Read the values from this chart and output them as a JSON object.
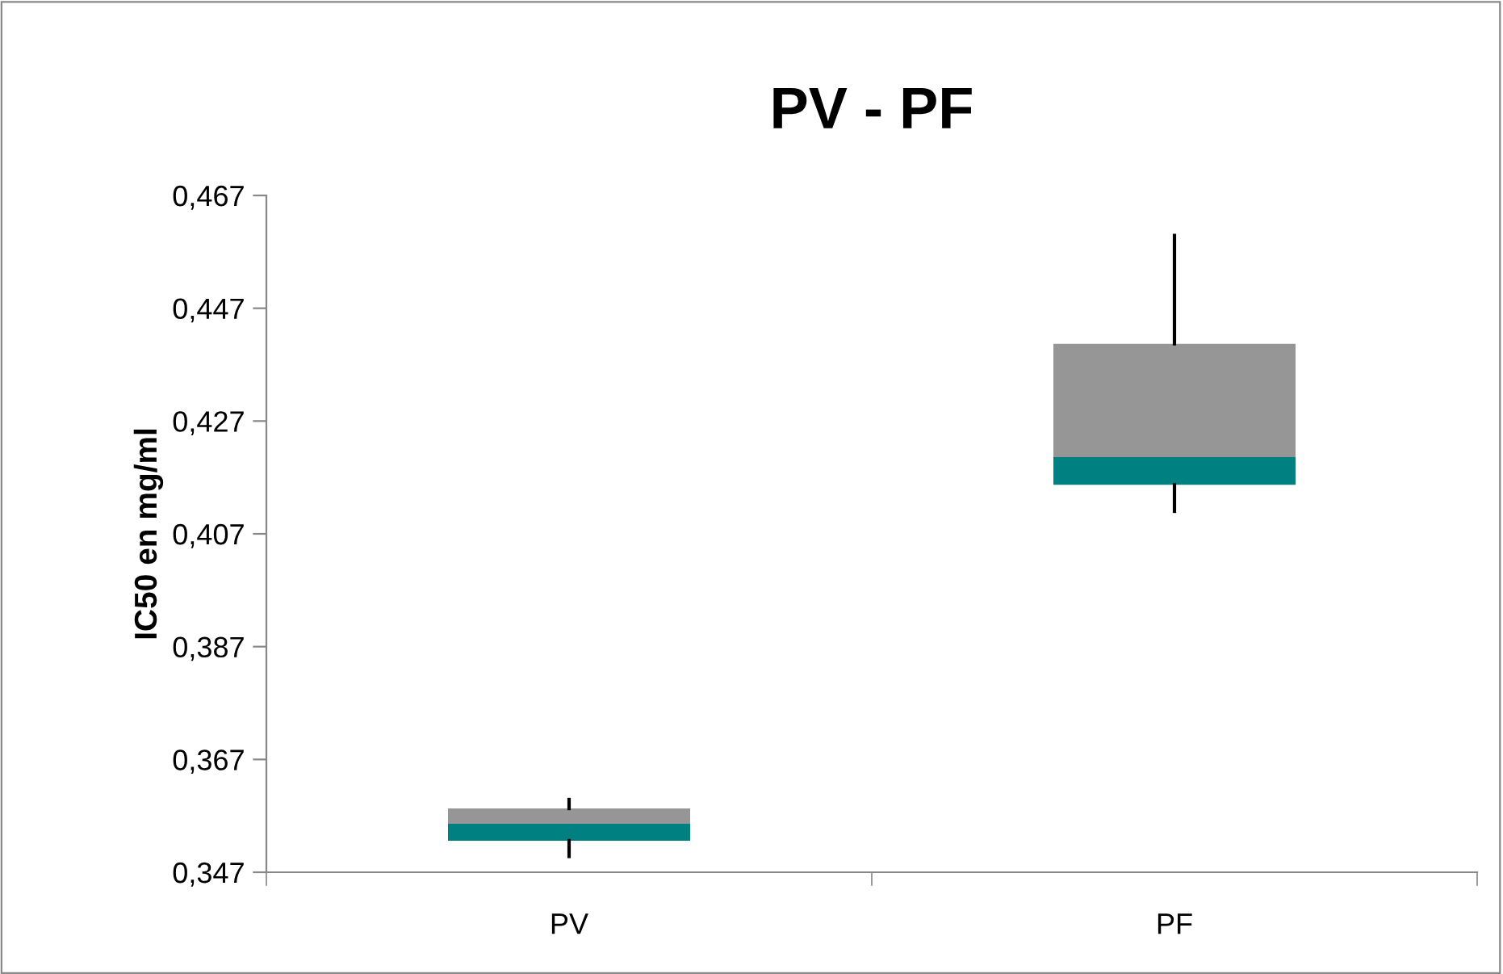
{
  "chart_data": {
    "type": "box",
    "title": "PV - PF",
    "ylabel": "IC50 en mg/ml",
    "categories": [
      "PV",
      "PF"
    ],
    "series": [
      {
        "color": "#008080",
        "boxes": [
          {
            "low": 0.3498,
            "q1": 0.3526,
            "median": 0.3556,
            "q3": 0.3583,
            "high": 0.3599
          },
          {
            "low": 0.411,
            "q1": 0.4157,
            "median": 0.4206,
            "q3": 0.4407,
            "high": 0.4599
          }
        ]
      }
    ],
    "colors": [
      "#969696",
      "#969696"
    ],
    "ylim": [
      0.347,
      0.467
    ],
    "yticks": [
      {
        "value": 0.347,
        "label": "0,347"
      },
      {
        "value": 0.367,
        "label": "0,367"
      },
      {
        "value": 0.387,
        "label": "0,387"
      },
      {
        "value": 0.407,
        "label": "0,407"
      },
      {
        "value": 0.427,
        "label": "0,427"
      },
      {
        "value": 0.447,
        "label": "0,447"
      },
      {
        "value": 0.467,
        "label": "0,467"
      }
    ],
    "grid": false,
    "legend": false
  }
}
